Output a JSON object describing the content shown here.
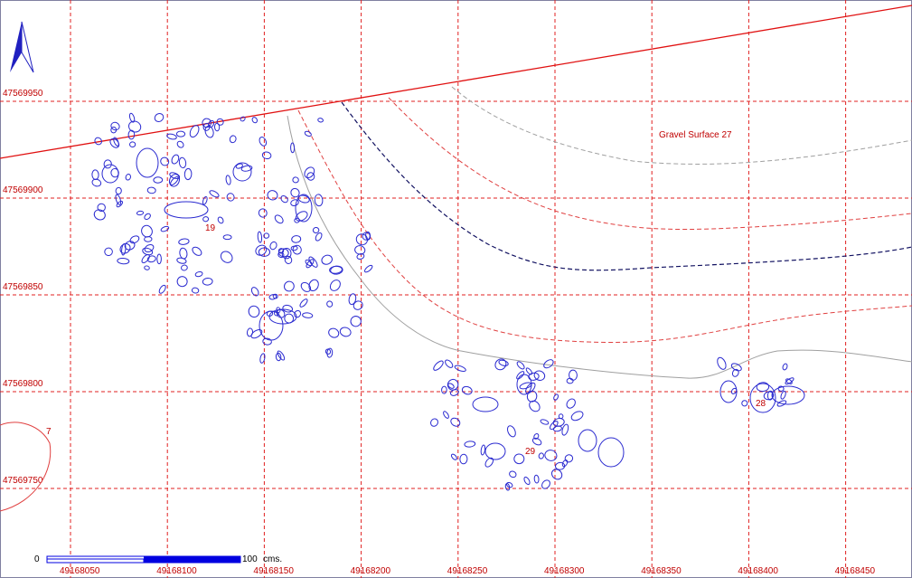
{
  "map": {
    "north_label": null,
    "grid_y_labels": [
      "47569950",
      "47569900",
      "47569850",
      "47569800",
      "47569750"
    ],
    "grid_x_labels": [
      "49168050",
      "49168100",
      "49168150",
      "49168200",
      "49168250",
      "49168300",
      "49168350",
      "49168400",
      "49168450"
    ],
    "features": [
      {
        "label": "Gravel Surface 27"
      },
      {
        "label": "19"
      },
      {
        "label": "29"
      },
      {
        "label": "28"
      },
      {
        "label": "7"
      }
    ],
    "scale_bar": {
      "start": "0",
      "end": "100",
      "unit": "cms."
    }
  }
}
